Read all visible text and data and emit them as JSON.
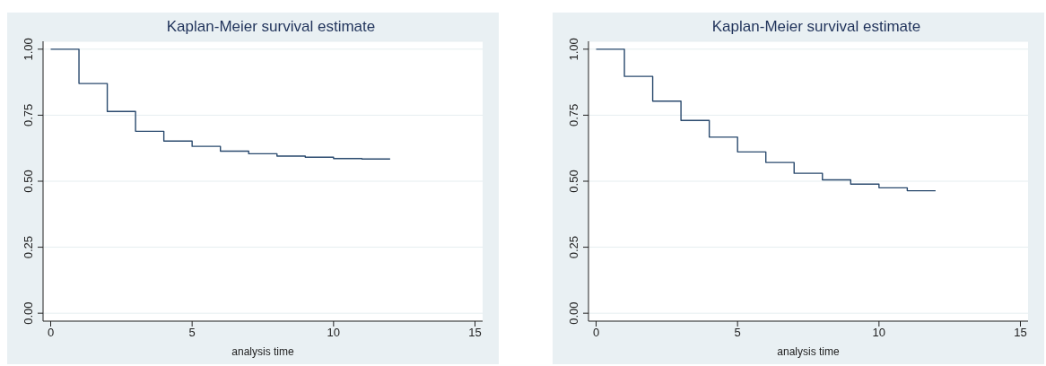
{
  "chart_data": [
    {
      "type": "step",
      "title": "Kaplan-Meier survival estimate",
      "xlabel": "analysis time",
      "x": [
        0,
        1,
        2,
        3,
        4,
        5,
        6,
        7,
        8,
        9,
        10,
        11,
        12
      ],
      "series": [
        {
          "color": "#2a4a6e",
          "values": [
            1.0,
            0.87,
            0.764,
            0.689,
            0.652,
            0.632,
            0.614,
            0.604,
            0.595,
            0.591,
            0.586,
            0.584,
            0.584
          ]
        }
      ],
      "xlim": [
        -0.27,
        15.27
      ],
      "xticks": [
        0,
        5,
        10,
        15
      ],
      "ylim": [
        -0.03,
        1.03
      ],
      "yticks": [
        {
          "value": 0,
          "label": "0.00"
        },
        {
          "value": 0.25,
          "label": "0.25"
        },
        {
          "value": 0.5,
          "label": "0.50"
        },
        {
          "value": 0.75,
          "label": "0.75"
        },
        {
          "value": 1,
          "label": "1.00"
        }
      ],
      "grid": "y",
      "legend": false,
      "marker": "none"
    },
    {
      "type": "step",
      "title": "Kaplan-Meier survival estimate",
      "xlabel": "analysis time",
      "x": [
        0,
        1,
        2,
        3,
        4,
        5,
        6,
        7,
        8,
        9,
        10,
        11,
        12
      ],
      "series": [
        {
          "color": "#2a4a6e",
          "values": [
            1.0,
            0.897,
            0.803,
            0.73,
            0.667,
            0.611,
            0.571,
            0.53,
            0.505,
            0.489,
            0.475,
            0.464,
            0.464
          ]
        }
      ],
      "xlim": [
        -0.27,
        15.27
      ],
      "xticks": [
        0,
        5,
        10,
        15
      ],
      "ylim": [
        -0.03,
        1.03
      ],
      "yticks": [
        {
          "value": 0,
          "label": "0.00"
        },
        {
          "value": 0.25,
          "label": "0.25"
        },
        {
          "value": 0.5,
          "label": "0.50"
        },
        {
          "value": 0.75,
          "label": "0.75"
        },
        {
          "value": 1,
          "label": "1.00"
        }
      ],
      "grid": "y",
      "legend": false,
      "marker": "none"
    }
  ]
}
